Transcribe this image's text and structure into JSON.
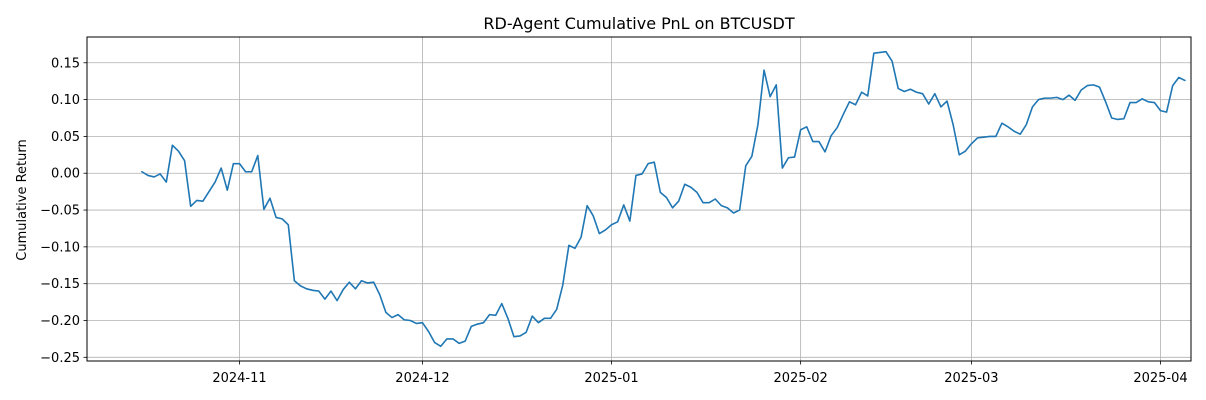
{
  "chart_data": {
    "type": "line",
    "title": "RD-Agent Cumulative PnL on BTCUSDT",
    "xlabel": "",
    "ylabel": "Cumulative Return",
    "grid": true,
    "x_range": [
      "2024-10-07",
      "2025-04-06"
    ],
    "ylim": [
      -0.255,
      0.185
    ],
    "y_ticks": [
      -0.25,
      -0.2,
      -0.15,
      -0.1,
      -0.05,
      0.0,
      0.05,
      0.1,
      0.15
    ],
    "y_tick_labels": [
      "−0.25",
      "−0.20",
      "−0.15",
      "−0.10",
      "−0.05",
      "0.00",
      "0.05",
      "0.10",
      "0.15"
    ],
    "x_ticks": [
      "2024-11-01",
      "2024-12-01",
      "2025-01-01",
      "2025-02-01",
      "2025-03-01",
      "2025-04-01"
    ],
    "x_tick_labels": [
      "2024-11",
      "2024-12",
      "2025-01",
      "2025-02",
      "2025-03",
      "2025-04"
    ],
    "series": [
      {
        "color": "#1f77b4",
        "points": [
          [
            "2024-10-16",
            0.002
          ],
          [
            "2024-10-17",
            -0.003
          ],
          [
            "2024-10-18",
            -0.005
          ],
          [
            "2024-10-19",
            -0.001
          ],
          [
            "2024-10-20",
            -0.012
          ],
          [
            "2024-10-21",
            0.038
          ],
          [
            "2024-10-22",
            0.03
          ],
          [
            "2024-10-23",
            0.017
          ],
          [
            "2024-10-24",
            -0.045
          ],
          [
            "2024-10-25",
            -0.037
          ],
          [
            "2024-10-26",
            -0.038
          ],
          [
            "2024-10-28",
            -0.012
          ],
          [
            "2024-10-29",
            0.007
          ],
          [
            "2024-10-30",
            -0.023
          ],
          [
            "2024-10-31",
            0.013
          ],
          [
            "2024-11-01",
            0.013
          ],
          [
            "2024-11-02",
            0.002
          ],
          [
            "2024-11-03",
            0.002
          ],
          [
            "2024-11-04",
            0.024
          ],
          [
            "2024-11-05",
            -0.049
          ],
          [
            "2024-11-06",
            -0.034
          ],
          [
            "2024-11-07",
            -0.06
          ],
          [
            "2024-11-08",
            -0.062
          ],
          [
            "2024-11-09",
            -0.07
          ],
          [
            "2024-11-10",
            -0.146
          ],
          [
            "2024-11-11",
            -0.153
          ],
          [
            "2024-11-12",
            -0.157
          ],
          [
            "2024-11-13",
            -0.159
          ],
          [
            "2024-11-14",
            -0.16
          ],
          [
            "2024-11-15",
            -0.171
          ],
          [
            "2024-11-16",
            -0.16
          ],
          [
            "2024-11-17",
            -0.173
          ],
          [
            "2024-11-18",
            -0.158
          ],
          [
            "2024-11-19",
            -0.148
          ],
          [
            "2024-11-20",
            -0.157
          ],
          [
            "2024-11-21",
            -0.146
          ],
          [
            "2024-11-22",
            -0.149
          ],
          [
            "2024-11-23",
            -0.148
          ],
          [
            "2024-11-24",
            -0.165
          ],
          [
            "2024-11-25",
            -0.189
          ],
          [
            "2024-11-26",
            -0.196
          ],
          [
            "2024-11-27",
            -0.192
          ],
          [
            "2024-11-28",
            -0.199
          ],
          [
            "2024-11-29",
            -0.2
          ],
          [
            "2024-11-30",
            -0.204
          ],
          [
            "2024-12-01",
            -0.203
          ],
          [
            "2024-12-02",
            -0.215
          ],
          [
            "2024-12-03",
            -0.23
          ],
          [
            "2024-12-04",
            -0.235
          ],
          [
            "2024-12-05",
            -0.225
          ],
          [
            "2024-12-06",
            -0.225
          ],
          [
            "2024-12-07",
            -0.231
          ],
          [
            "2024-12-08",
            -0.228
          ],
          [
            "2024-12-09",
            -0.208
          ],
          [
            "2024-12-10",
            -0.205
          ],
          [
            "2024-12-11",
            -0.203
          ],
          [
            "2024-12-12",
            -0.192
          ],
          [
            "2024-12-13",
            -0.193
          ],
          [
            "2024-12-14",
            -0.177
          ],
          [
            "2024-12-15",
            -0.197
          ],
          [
            "2024-12-16",
            -0.222
          ],
          [
            "2024-12-17",
            -0.221
          ],
          [
            "2024-12-18",
            -0.216
          ],
          [
            "2024-12-19",
            -0.194
          ],
          [
            "2024-12-20",
            -0.203
          ],
          [
            "2024-12-21",
            -0.197
          ],
          [
            "2024-12-22",
            -0.197
          ],
          [
            "2024-12-23",
            -0.185
          ],
          [
            "2024-12-24",
            -0.152
          ],
          [
            "2024-12-25",
            -0.098
          ],
          [
            "2024-12-26",
            -0.102
          ],
          [
            "2024-12-27",
            -0.087
          ],
          [
            "2024-12-28",
            -0.044
          ],
          [
            "2024-12-29",
            -0.058
          ],
          [
            "2024-12-30",
            -0.082
          ],
          [
            "2024-12-31",
            -0.077
          ],
          [
            "2025-01-01",
            -0.07
          ],
          [
            "2025-01-02",
            -0.066
          ],
          [
            "2025-01-03",
            -0.043
          ],
          [
            "2025-01-04",
            -0.065
          ],
          [
            "2025-01-05",
            -0.003
          ],
          [
            "2025-01-06",
            -0.001
          ],
          [
            "2025-01-07",
            0.013
          ],
          [
            "2025-01-08",
            0.015
          ],
          [
            "2025-01-09",
            -0.026
          ],
          [
            "2025-01-10",
            -0.033
          ],
          [
            "2025-01-11",
            -0.047
          ],
          [
            "2025-01-12",
            -0.038
          ],
          [
            "2025-01-13",
            -0.015
          ],
          [
            "2025-01-14",
            -0.019
          ],
          [
            "2025-01-15",
            -0.026
          ],
          [
            "2025-01-16",
            -0.04
          ],
          [
            "2025-01-17",
            -0.04
          ],
          [
            "2025-01-18",
            -0.035
          ],
          [
            "2025-01-19",
            -0.044
          ],
          [
            "2025-01-20",
            -0.047
          ],
          [
            "2025-01-21",
            -0.054
          ],
          [
            "2025-01-22",
            -0.05
          ],
          [
            "2025-01-23",
            0.01
          ],
          [
            "2025-01-24",
            0.023
          ],
          [
            "2025-01-25",
            0.066
          ],
          [
            "2025-01-26",
            0.14
          ],
          [
            "2025-01-27",
            0.104
          ],
          [
            "2025-01-28",
            0.12
          ],
          [
            "2025-01-29",
            0.007
          ],
          [
            "2025-01-30",
            0.021
          ],
          [
            "2025-01-31",
            0.022
          ],
          [
            "2025-02-01",
            0.059
          ],
          [
            "2025-02-02",
            0.063
          ],
          [
            "2025-02-03",
            0.043
          ],
          [
            "2025-02-04",
            0.043
          ],
          [
            "2025-02-05",
            0.029
          ],
          [
            "2025-02-06",
            0.051
          ],
          [
            "2025-02-07",
            0.062
          ],
          [
            "2025-02-08",
            0.08
          ],
          [
            "2025-02-09",
            0.097
          ],
          [
            "2025-02-10",
            0.093
          ],
          [
            "2025-02-11",
            0.11
          ],
          [
            "2025-02-12",
            0.105
          ],
          [
            "2025-02-13",
            0.163
          ],
          [
            "2025-02-14",
            0.164
          ],
          [
            "2025-02-15",
            0.165
          ],
          [
            "2025-02-16",
            0.152
          ],
          [
            "2025-02-17",
            0.115
          ],
          [
            "2025-02-18",
            0.111
          ],
          [
            "2025-02-19",
            0.114
          ],
          [
            "2025-02-20",
            0.11
          ],
          [
            "2025-02-21",
            0.108
          ],
          [
            "2025-02-22",
            0.094
          ],
          [
            "2025-02-23",
            0.108
          ],
          [
            "2025-02-24",
            0.09
          ],
          [
            "2025-02-25",
            0.098
          ],
          [
            "2025-02-26",
            0.066
          ],
          [
            "2025-02-27",
            0.025
          ],
          [
            "2025-02-28",
            0.03
          ],
          [
            "2025-03-01",
            0.04
          ],
          [
            "2025-03-02",
            0.048
          ],
          [
            "2025-03-03",
            0.049
          ],
          [
            "2025-03-04",
            0.05
          ],
          [
            "2025-03-05",
            0.05
          ],
          [
            "2025-03-06",
            0.068
          ],
          [
            "2025-03-07",
            0.063
          ],
          [
            "2025-03-08",
            0.057
          ],
          [
            "2025-03-09",
            0.053
          ],
          [
            "2025-03-10",
            0.066
          ],
          [
            "2025-03-11",
            0.09
          ],
          [
            "2025-03-12",
            0.1
          ],
          [
            "2025-03-13",
            0.102
          ],
          [
            "2025-03-14",
            0.102
          ],
          [
            "2025-03-15",
            0.103
          ],
          [
            "2025-03-16",
            0.1
          ],
          [
            "2025-03-17",
            0.106
          ],
          [
            "2025-03-18",
            0.099
          ],
          [
            "2025-03-19",
            0.113
          ],
          [
            "2025-03-20",
            0.119
          ],
          [
            "2025-03-21",
            0.12
          ],
          [
            "2025-03-22",
            0.117
          ],
          [
            "2025-03-23",
            0.097
          ],
          [
            "2025-03-24",
            0.075
          ],
          [
            "2025-03-25",
            0.073
          ],
          [
            "2025-03-26",
            0.074
          ],
          [
            "2025-03-27",
            0.096
          ],
          [
            "2025-03-28",
            0.096
          ],
          [
            "2025-03-29",
            0.101
          ],
          [
            "2025-03-30",
            0.097
          ],
          [
            "2025-03-31",
            0.096
          ],
          [
            "2025-04-01",
            0.085
          ],
          [
            "2025-04-02",
            0.083
          ],
          [
            "2025-04-03",
            0.119
          ],
          [
            "2025-04-04",
            0.13
          ],
          [
            "2025-04-05",
            0.126
          ]
        ]
      }
    ]
  }
}
